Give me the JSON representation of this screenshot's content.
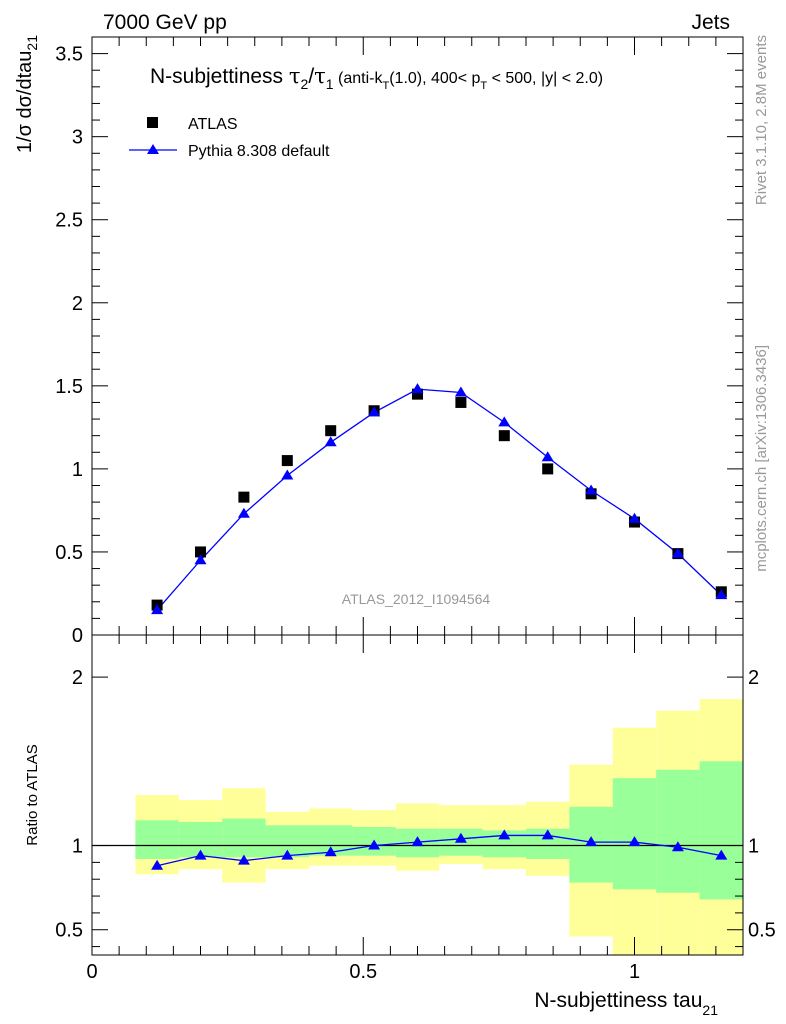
{
  "header": {
    "left": "7000 GeV pp",
    "right": "Jets"
  },
  "side_labels": {
    "top": "Rivet 3.1.10,  2.8M events",
    "bottom": "mcplots.cern.ch [arXiv:1306.3436]"
  },
  "chart_data": {
    "type": "scatter",
    "title": {
      "main": "N-subjettiness ",
      "tau2_base": "τ",
      "tau2_sub": "2",
      "slash": "/",
      "tau1_base": "τ",
      "tau1_sub": "1",
      "cuts_a": " (anti-k",
      "cuts_sub_t": "T",
      "cuts_b": "(1.0), 400< p",
      "cuts_c": " < 500, |y| < 2.0)"
    },
    "watermark": "ATLAS_2012_I1094564",
    "xlabel_base": "N-subjettiness tau",
    "xlabel_sub": "21",
    "ylabel_base": "1/σ dσ/dtau",
    "ylabel_sub": "21",
    "ratio_ylabel": "Ratio to ATLAS",
    "xlim": [
      0,
      1.2
    ],
    "ylim": [
      0,
      3.6
    ],
    "ratio_ylim": [
      0.35,
      2.25
    ],
    "x_ticks": [
      0,
      0.5,
      1
    ],
    "x_tick_labels": [
      "0",
      "0.5",
      "1"
    ],
    "y_ticks": [
      0,
      0.5,
      1,
      1.5,
      2,
      2.5,
      3,
      3.5
    ],
    "y_tick_labels": [
      "0",
      "0.5",
      "1",
      "1.5",
      "2",
      "2.5",
      "3",
      "3.5"
    ],
    "ratio_y_ticks": [
      0.5,
      1,
      2
    ],
    "ratio_y_tick_labels": [
      "0.5",
      "1",
      "2"
    ],
    "bin_edges": [
      0.08,
      0.16,
      0.24,
      0.32,
      0.4,
      0.48,
      0.56,
      0.64,
      0.72,
      0.8,
      0.88,
      0.96,
      1.04,
      1.12,
      1.2
    ],
    "x": [
      0.12,
      0.2,
      0.28,
      0.36,
      0.44,
      0.52,
      0.6,
      0.68,
      0.76,
      0.84,
      0.92,
      1.0,
      1.08,
      1.16
    ],
    "legend": {
      "placement": "top-left"
    },
    "series": [
      {
        "name": "ATLAS",
        "marker": "square",
        "color": "#000000",
        "values": [
          0.18,
          0.5,
          0.83,
          1.05,
          1.23,
          1.35,
          1.45,
          1.4,
          1.2,
          1.0,
          0.85,
          0.68,
          0.49,
          0.26
        ]
      },
      {
        "name": "Pythia 8.308 default",
        "marker": "triangle",
        "color": "#0000ff",
        "values": [
          0.15,
          0.45,
          0.73,
          0.96,
          1.16,
          1.34,
          1.48,
          1.46,
          1.28,
          1.07,
          0.87,
          0.7,
          0.49,
          0.24
        ]
      }
    ],
    "ratio": {
      "values": [
        0.88,
        0.94,
        0.91,
        0.94,
        0.96,
        1.0,
        1.02,
        1.04,
        1.06,
        1.06,
        1.02,
        1.02,
        0.99,
        0.94
      ],
      "band_inner": [
        [
          0.92,
          1.15
        ],
        [
          0.93,
          1.14
        ],
        [
          0.93,
          1.16
        ],
        [
          0.93,
          1.12
        ],
        [
          0.94,
          1.12
        ],
        [
          0.94,
          1.11
        ],
        [
          0.93,
          1.1
        ],
        [
          0.94,
          1.1
        ],
        [
          0.93,
          1.09
        ],
        [
          0.92,
          1.1
        ],
        [
          0.78,
          1.23
        ],
        [
          0.74,
          1.4
        ],
        [
          0.72,
          1.45
        ],
        [
          0.68,
          1.5
        ]
      ],
      "band_outer": [
        [
          0.83,
          1.3
        ],
        [
          0.86,
          1.27
        ],
        [
          0.78,
          1.34
        ],
        [
          0.86,
          1.2
        ],
        [
          0.88,
          1.22
        ],
        [
          0.88,
          1.21
        ],
        [
          0.85,
          1.25
        ],
        [
          0.89,
          1.24
        ],
        [
          0.86,
          1.24
        ],
        [
          0.82,
          1.26
        ],
        [
          0.46,
          1.48
        ],
        [
          0.35,
          1.7
        ],
        [
          0.35,
          1.8
        ],
        [
          0.35,
          1.87
        ]
      ],
      "inner_color": "#99ff99",
      "outer_color": "#ffff99",
      "reference": 1
    }
  }
}
